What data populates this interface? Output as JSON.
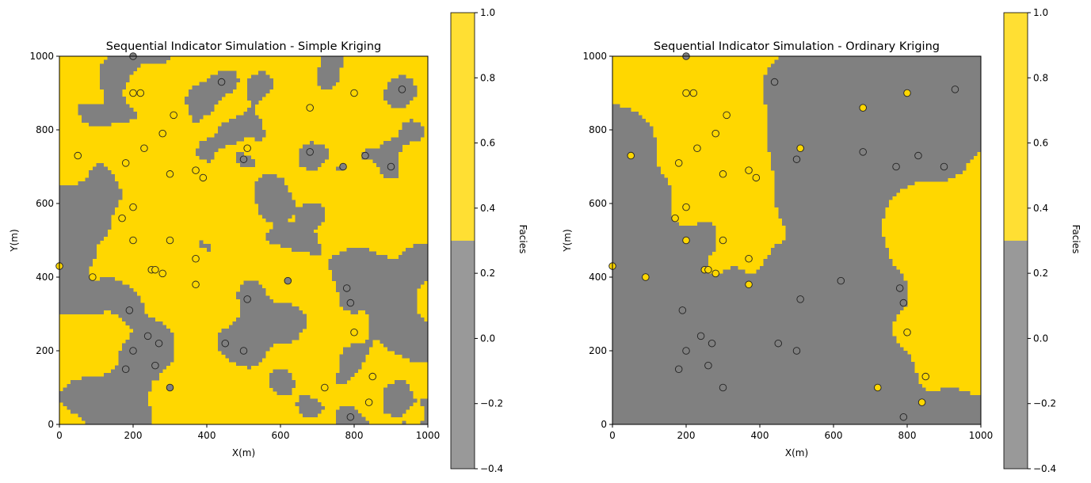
{
  "chart_data": [
    {
      "type": "heatmap",
      "title": "Sequential Indicator Simulation - Simple Kriging",
      "xlabel": "X(m)",
      "ylabel": "Y(m)",
      "xlim": [
        0,
        1000
      ],
      "ylim": [
        0,
        1000
      ],
      "xticks": [
        0,
        200,
        400,
        600,
        800,
        1000
      ],
      "yticks": [
        0,
        200,
        400,
        600,
        800,
        1000
      ],
      "facies_colors": {
        "0": "#808080",
        "1": "#FFD700"
      },
      "colorbar": {
        "label": "Facies",
        "range": [
          -0.4,
          1.0
        ],
        "split": 0.3,
        "ticks": [
          -0.4,
          -0.2,
          0.0,
          0.2,
          0.4,
          0.6,
          0.8,
          1.0
        ],
        "tick_labels": [
          "−0.4",
          "−0.2",
          "0.0",
          "0.2",
          "0.4",
          "0.6",
          "0.8",
          "1.0"
        ],
        "colors": [
          "#999999",
          "#FFDF33"
        ]
      },
      "style": "patchy"
    },
    {
      "type": "heatmap",
      "title": "Sequential Indicator Simulation - Ordinary Kriging",
      "xlabel": "X(m)",
      "ylabel": "Y(m)",
      "xlim": [
        0,
        1000
      ],
      "ylim": [
        0,
        1000
      ],
      "xticks": [
        0,
        200,
        400,
        600,
        800,
        1000
      ],
      "yticks": [
        0,
        200,
        400,
        600,
        800,
        1000
      ],
      "facies_colors": {
        "0": "#808080",
        "1": "#FFD700"
      },
      "colorbar": {
        "label": "Facies",
        "range": [
          -0.4,
          1.0
        ],
        "split": 0.3,
        "ticks": [
          -0.4,
          -0.2,
          0.0,
          0.2,
          0.4,
          0.6,
          0.8,
          1.0
        ],
        "tick_labels": [
          "−0.4",
          "−0.2",
          "0.0",
          "0.2",
          "0.4",
          "0.6",
          "0.8",
          "1.0"
        ],
        "colors": [
          "#999999",
          "#FFDF33"
        ]
      },
      "style": "smooth"
    }
  ],
  "wells": [
    {
      "x": 0,
      "y": 430,
      "f": 1
    },
    {
      "x": 50,
      "y": 730,
      "f": 1
    },
    {
      "x": 90,
      "y": 400,
      "f": 1
    },
    {
      "x": 170,
      "y": 560,
      "f": 1
    },
    {
      "x": 180,
      "y": 710,
      "f": 1
    },
    {
      "x": 200,
      "y": 1000,
      "f": 0
    },
    {
      "x": 200,
      "y": 900,
      "f": 1
    },
    {
      "x": 220,
      "y": 900,
      "f": 1
    },
    {
      "x": 230,
      "y": 750,
      "f": 1
    },
    {
      "x": 200,
      "y": 590,
      "f": 1
    },
    {
      "x": 200,
      "y": 500,
      "f": 1
    },
    {
      "x": 280,
      "y": 790,
      "f": 1
    },
    {
      "x": 310,
      "y": 840,
      "f": 1
    },
    {
      "x": 300,
      "y": 680,
      "f": 1
    },
    {
      "x": 300,
      "y": 500,
      "f": 1
    },
    {
      "x": 370,
      "y": 690,
      "f": 1
    },
    {
      "x": 390,
      "y": 670,
      "f": 1
    },
    {
      "x": 370,
      "y": 450,
      "f": 1
    },
    {
      "x": 250,
      "y": 420,
      "f": 1
    },
    {
      "x": 260,
      "y": 420,
      "f": 1
    },
    {
      "x": 280,
      "y": 410,
      "f": 1
    },
    {
      "x": 370,
      "y": 380,
      "f": 1
    },
    {
      "x": 190,
      "y": 310,
      "f": 0
    },
    {
      "x": 240,
      "y": 240,
      "f": 0
    },
    {
      "x": 270,
      "y": 220,
      "f": 0
    },
    {
      "x": 200,
      "y": 200,
      "f": 0
    },
    {
      "x": 260,
      "y": 160,
      "f": 0
    },
    {
      "x": 180,
      "y": 150,
      "f": 0
    },
    {
      "x": 300,
      "y": 100,
      "f": 0
    },
    {
      "x": 440,
      "y": 930,
      "f": 0
    },
    {
      "x": 450,
      "y": 220,
      "f": 0
    },
    {
      "x": 500,
      "y": 720,
      "f": 0
    },
    {
      "x": 510,
      "y": 750,
      "f": 1
    },
    {
      "x": 500,
      "y": 200,
      "f": 0
    },
    {
      "x": 510,
      "y": 340,
      "f": 0
    },
    {
      "x": 620,
      "y": 390,
      "f": 0
    },
    {
      "x": 680,
      "y": 860,
      "f": 1
    },
    {
      "x": 680,
      "y": 740,
      "f": 0
    },
    {
      "x": 720,
      "y": 100,
      "f": 1
    },
    {
      "x": 770,
      "y": 700,
      "f": 0
    },
    {
      "x": 780,
      "y": 370,
      "f": 0
    },
    {
      "x": 790,
      "y": 330,
      "f": 0
    },
    {
      "x": 800,
      "y": 900,
      "f": 1
    },
    {
      "x": 800,
      "y": 250,
      "f": 1
    },
    {
      "x": 790,
      "y": 20,
      "f": 0
    },
    {
      "x": 830,
      "y": 730,
      "f": 0
    },
    {
      "x": 840,
      "y": 60,
      "f": 1
    },
    {
      "x": 850,
      "y": 130,
      "f": 1
    },
    {
      "x": 900,
      "y": 700,
      "f": 0
    },
    {
      "x": 930,
      "y": 910,
      "f": 0
    }
  ]
}
